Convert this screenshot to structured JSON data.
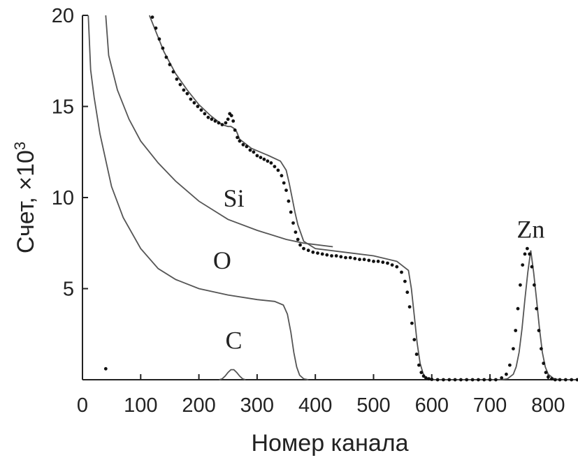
{
  "chart_data": {
    "type": "line",
    "title": "",
    "xlabel": "Номер канала",
    "ylabel": "Счет, ×10",
    "ylabel_exponent": "3",
    "xlim": [
      0,
      850
    ],
    "ylim": [
      0,
      20
    ],
    "x_ticks": [
      "0",
      "100",
      "200",
      "300",
      "400",
      "500",
      "600",
      "700",
      "800"
    ],
    "y_ticks": [
      "5",
      "10",
      "15",
      "20"
    ],
    "grid": false,
    "series": [
      {
        "name": "Si",
        "style": "line",
        "x": [
          40,
          45,
          60,
          80,
          100,
          130,
          160,
          200,
          250,
          300,
          350,
          380,
          430
        ],
        "y": [
          20,
          17.8,
          15.9,
          14.3,
          13.1,
          11.9,
          10.9,
          9.8,
          8.8,
          8.2,
          7.7,
          7.5,
          7.3
        ]
      },
      {
        "name": "O",
        "style": "line",
        "x": [
          10,
          14,
          20,
          30,
          50,
          70,
          100,
          130,
          160,
          200,
          250,
          300,
          330,
          345,
          352,
          358,
          363,
          368,
          373,
          380,
          388
        ],
        "y": [
          20,
          17,
          15.5,
          13.5,
          10.6,
          8.9,
          7.2,
          6.1,
          5.5,
          5.0,
          4.65,
          4.4,
          4.3,
          4.1,
          3.6,
          2.6,
          1.5,
          0.7,
          0.25,
          0.05,
          0
        ]
      },
      {
        "name": "C",
        "style": "line",
        "x": [
          235,
          240,
          245,
          250,
          255,
          260,
          265,
          270,
          275,
          280
        ],
        "y": [
          0,
          0.05,
          0.2,
          0.4,
          0.55,
          0.55,
          0.4,
          0.2,
          0.05,
          0
        ]
      },
      {
        "name": "Zn",
        "style": "line",
        "x": [
          720,
          730,
          740,
          745,
          750,
          755,
          760,
          765,
          770,
          775,
          780,
          785,
          790,
          795,
          800,
          810,
          820,
          850
        ],
        "y": [
          0,
          0.05,
          0.3,
          0.7,
          1.5,
          2.8,
          4.4,
          5.9,
          7.1,
          5.9,
          4.4,
          2.8,
          1.5,
          0.7,
          0.3,
          0.05,
          0,
          0
        ]
      },
      {
        "name": "",
        "style": "line",
        "x": [
          115,
          125,
          140,
          160,
          180,
          200,
          220,
          240,
          250,
          255,
          260,
          265,
          270,
          290,
          320,
          340,
          350,
          355,
          360,
          365,
          370,
          380,
          400,
          450,
          500,
          540,
          560,
          565,
          570,
          575,
          580,
          585,
          590,
          595,
          600,
          610,
          620,
          700,
          720
        ],
        "y": [
          20,
          19.2,
          18.0,
          16.8,
          15.9,
          15.1,
          14.5,
          14.0,
          13.9,
          13.9,
          13.8,
          13.6,
          13.2,
          12.7,
          12.3,
          12.0,
          11.5,
          10.8,
          10.0,
          9.2,
          8.5,
          7.6,
          7.2,
          7.0,
          6.8,
          6.5,
          6.0,
          5.0,
          3.5,
          2.0,
          0.9,
          0.35,
          0.1,
          0.03,
          0,
          0,
          0,
          0,
          0
        ]
      },
      {
        "name": "",
        "style": "points",
        "x": [
          120,
          126,
          132,
          138,
          144,
          150,
          156,
          162,
          168,
          174,
          180,
          186,
          192,
          198,
          204,
          210,
          216,
          222,
          228,
          234,
          240,
          246,
          250,
          253,
          256,
          259,
          262,
          266,
          270,
          276,
          282,
          288,
          294,
          300,
          306,
          312,
          318,
          324,
          330,
          336,
          342,
          346,
          350,
          354,
          358,
          362,
          366,
          370,
          374,
          380,
          388,
          396,
          404,
          412,
          420,
          428,
          436,
          444,
          452,
          460,
          468,
          476,
          484,
          492,
          500,
          508,
          516,
          524,
          532,
          540,
          548,
          554,
          558,
          562,
          566,
          570,
          574,
          578,
          582,
          586,
          590,
          595,
          600,
          610,
          620,
          630,
          640,
          650,
          660,
          670,
          680,
          690,
          700,
          710,
          720,
          728,
          734,
          740,
          744,
          748,
          752,
          756,
          760,
          764,
          768,
          772,
          776,
          780,
          784,
          788,
          792,
          796,
          800,
          806,
          812,
          820,
          830,
          840,
          850,
          40
        ],
        "y": [
          19.9,
          19.3,
          18.7,
          18.2,
          17.7,
          17.3,
          16.9,
          16.5,
          16.2,
          15.9,
          15.7,
          15.4,
          15.2,
          15.0,
          14.8,
          14.6,
          14.4,
          14.3,
          14.2,
          14.1,
          14.0,
          14.1,
          14.3,
          14.6,
          14.5,
          14.2,
          13.7,
          13.3,
          13.1,
          12.9,
          12.8,
          12.6,
          12.5,
          12.3,
          12.2,
          12.1,
          12.0,
          11.9,
          11.7,
          11.5,
          11.2,
          10.8,
          10.4,
          9.8,
          9.2,
          8.6,
          8.1,
          7.7,
          7.4,
          7.2,
          7.1,
          7.0,
          6.95,
          6.9,
          6.85,
          6.8,
          6.8,
          6.75,
          6.7,
          6.7,
          6.65,
          6.6,
          6.6,
          6.55,
          6.5,
          6.5,
          6.45,
          6.4,
          6.3,
          6.2,
          5.9,
          5.4,
          4.8,
          4.0,
          3.1,
          2.2,
          1.4,
          0.8,
          0.4,
          0.2,
          0.1,
          0.05,
          0.02,
          0,
          0,
          0,
          0,
          0,
          0,
          0,
          0,
          0,
          0,
          0,
          0.1,
          0.3,
          0.8,
          1.7,
          2.7,
          3.9,
          5.2,
          6.3,
          6.9,
          7.2,
          6.9,
          6.2,
          5.2,
          3.9,
          2.7,
          1.7,
          0.9,
          0.4,
          0.15,
          0.05,
          0,
          0,
          0,
          0,
          0,
          0.6
        ]
      }
    ],
    "annotations": [
      {
        "text": "Si",
        "x": 260,
        "y": 9.5
      },
      {
        "text": "O",
        "x": 240,
        "y": 6.1
      },
      {
        "text": "C",
        "x": 260,
        "y": 1.7
      },
      {
        "text": "Zn",
        "x": 770,
        "y": 7.8
      }
    ]
  }
}
